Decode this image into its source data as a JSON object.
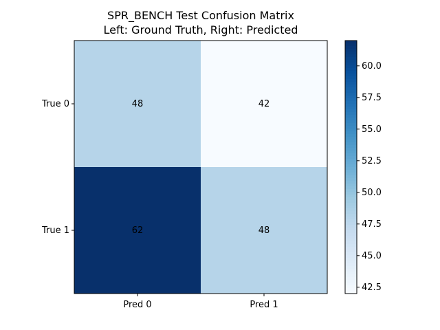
{
  "chart_data": {
    "type": "heatmap",
    "title_line1": "SPR_BENCH Test Confusion Matrix",
    "title_line2": "Left: Ground Truth, Right: Predicted",
    "rows": [
      "True 0",
      "True 1"
    ],
    "columns": [
      "Pred 0",
      "Pred 1"
    ],
    "values": [
      [
        48,
        42
      ],
      [
        62,
        48
      ]
    ],
    "colormap": "Blues",
    "vmin": 42,
    "vmax": 62,
    "colorbar_ticks": [
      "42.5",
      "45.0",
      "47.5",
      "50.0",
      "52.5",
      "55.0",
      "57.5",
      "60.0"
    ],
    "colors": {
      "low": "#f7fbff",
      "mid": "#b7d4ea",
      "high": "#08306b"
    }
  }
}
